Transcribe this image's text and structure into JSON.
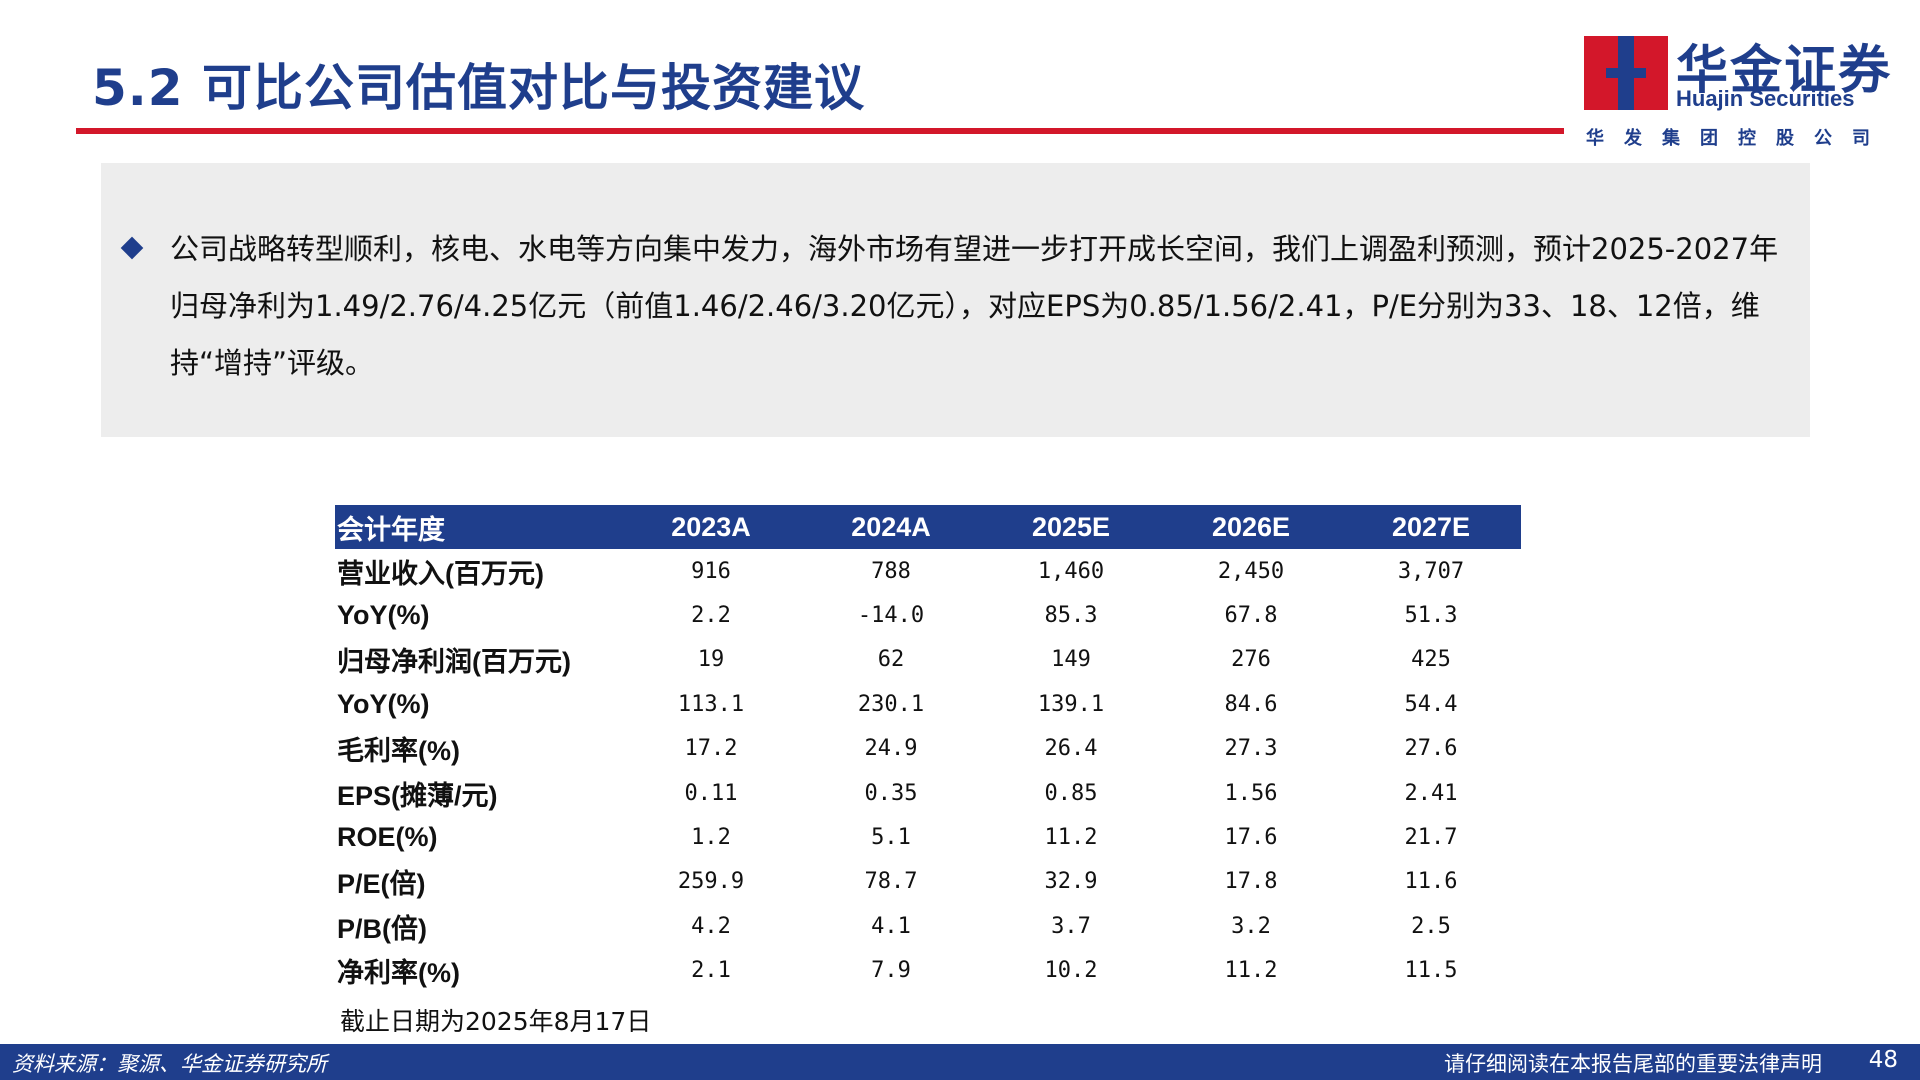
{
  "header": {
    "title": "5.2 可比公司估值对比与投资建议",
    "logo_cn": "华金证券",
    "logo_en": "Huajin Securities",
    "logo_sub": "华发集团控股公司",
    "accent_red": "#d3172a",
    "brand_blue": "#1f3e8c"
  },
  "summary": {
    "bullet_icon": "diamond-bullet",
    "text": "公司战略转型顺利，核电、水电等方向集中发力，海外市场有望进一步打开成长空间，我们上调盈利预测，预计2025-2027年归母净利为1.49/2.76/4.25亿元（前值1.46/2.46/3.20亿元），对应EPS为0.85/1.56/2.41，P/E分别为33、18、12倍，维持“增持”评级。"
  },
  "table": {
    "headers": [
      "会计年度",
      "2023A",
      "2024A",
      "2025E",
      "2026E",
      "2027E"
    ],
    "rows": [
      {
        "label": "营业收入(百万元)",
        "values": [
          "916",
          "788",
          "1,460",
          "2,450",
          "3,707"
        ]
      },
      {
        "label": "YoY(%)",
        "values": [
          "2.2",
          "-14.0",
          "85.3",
          "67.8",
          "51.3"
        ]
      },
      {
        "label": "归母净利润(百万元)",
        "values": [
          "19",
          "62",
          "149",
          "276",
          "425"
        ]
      },
      {
        "label": "YoY(%)",
        "values": [
          "113.1",
          "230.1",
          "139.1",
          "84.6",
          "54.4"
        ]
      },
      {
        "label": "毛利率(%)",
        "values": [
          "17.2",
          "24.9",
          "26.4",
          "27.3",
          "27.6"
        ]
      },
      {
        "label": "EPS(摊薄/元)",
        "values": [
          "0.11",
          "0.35",
          "0.85",
          "1.56",
          "2.41"
        ]
      },
      {
        "label": "ROE(%)",
        "values": [
          "1.2",
          "5.1",
          "11.2",
          "17.6",
          "21.7"
        ]
      },
      {
        "label": "P/E(倍)",
        "values": [
          "259.9",
          "78.7",
          "32.9",
          "17.8",
          "11.6"
        ]
      },
      {
        "label": "P/B(倍)",
        "values": [
          "4.2",
          "4.1",
          "3.7",
          "3.2",
          "2.5"
        ]
      },
      {
        "label": "净利率(%)",
        "values": [
          "2.1",
          "7.9",
          "10.2",
          "11.2",
          "11.5"
        ]
      }
    ],
    "note": "截止日期为2025年8月17日"
  },
  "footer": {
    "source": "资料来源：聚源、华金证券研究所",
    "disclaimer": "请仔细阅读在本报告尾部的重要法律声明",
    "page_number": "48"
  }
}
